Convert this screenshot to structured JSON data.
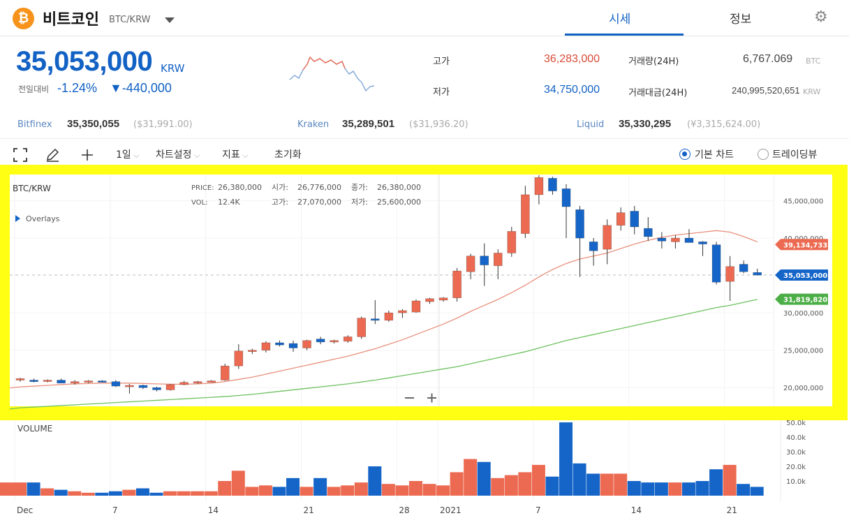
{
  "header": {
    "coin_name": "비트코인",
    "pair": "BTC/KRW",
    "tabs": [
      {
        "label": "시세",
        "active": true
      },
      {
        "label": "정보",
        "active": false
      }
    ]
  },
  "price": {
    "current": "35,053,000",
    "unit": "KRW",
    "change_label": "전일대비",
    "change_pct": "-1.24%",
    "change_abs": "▼-440,000",
    "high_label": "고가",
    "high": "36,283,000",
    "low_label": "저가",
    "low": "34,750,000",
    "volume_label": "거래량(24H)",
    "volume": "6,767.069",
    "volume_unit": "BTC",
    "amount_label": "거래대금(24H)",
    "amount": "240,995,520,651",
    "amount_unit": "KRW"
  },
  "exchanges": [
    {
      "name": "Bitfinex",
      "price": "35,350,055",
      "alt": "($31,991.00)"
    },
    {
      "name": "Kraken",
      "price": "35,289,501",
      "alt": "($31,936.20)"
    },
    {
      "name": "Liquid",
      "price": "35,330,295",
      "alt": "(¥3,315,624.00)"
    }
  ],
  "toolbar": {
    "interval": "1일",
    "chart_settings": "차트설정",
    "indicators": "지표",
    "reset": "초기화",
    "basic_chart": "기본 차트",
    "tradingview": "트레이딩뷰"
  },
  "legend": {
    "symbol": "BTC/KRW",
    "overlays": "Overlays",
    "price_label": "PRICE:",
    "price": "26,380,000",
    "open_label": "시가:",
    "open": "26,776,000",
    "close_label": "종가:",
    "close": "26,380,000",
    "vol_label": "VOL:",
    "vol": "12.4K",
    "high_label": "고가:",
    "high": "27,070,000",
    "low_label": "저가:",
    "low": "25,600,000",
    "volume_title": "VOLUME"
  },
  "colors": {
    "up": "#ec6a51",
    "down": "#1565c8",
    "ma_short": "#e8907c",
    "ma_long": "#6cc15e",
    "accent": "#1261c4",
    "highlight": "#ffff14"
  },
  "chart_data": {
    "type": "candlestick",
    "x_ticks": [
      "Dec",
      "7",
      "14",
      "21",
      "28",
      "2021",
      "7",
      "14",
      "21"
    ],
    "y_ticks": [
      "45,000,000",
      "40,000,000",
      "30,000,000",
      "25,000,000",
      "20,000,000"
    ],
    "y_range": [
      17500000,
      48500000
    ],
    "price_markers": [
      {
        "label": "39,134,733",
        "value": 39134733,
        "color": "#ec6a51"
      },
      {
        "label": "35,053,000",
        "value": 35053000,
        "color": "#1565c8"
      },
      {
        "label": "31,819,820",
        "value": 31819820,
        "color": "#4cae47"
      }
    ],
    "candles": [
      [
        21.0,
        21.3,
        20.8,
        21.2
      ],
      [
        21.0,
        21.2,
        20.7,
        20.8
      ],
      [
        20.9,
        21.1,
        20.7,
        21.0
      ],
      [
        21.0,
        21.2,
        20.6,
        20.6
      ],
      [
        20.6,
        21.0,
        20.4,
        20.8
      ],
      [
        20.8,
        21.0,
        20.6,
        20.9
      ],
      [
        20.9,
        21.0,
        20.7,
        20.8
      ],
      [
        20.8,
        21.0,
        20.1,
        20.2
      ],
      [
        20.2,
        20.5,
        19.2,
        20.3
      ],
      [
        20.3,
        20.4,
        19.8,
        20.0
      ],
      [
        20.0,
        20.1,
        19.5,
        19.7
      ],
      [
        19.7,
        20.5,
        19.6,
        20.4
      ],
      [
        20.4,
        20.9,
        20.3,
        20.7
      ],
      [
        20.6,
        20.9,
        20.5,
        20.8
      ],
      [
        20.8,
        21.0,
        20.7,
        20.9
      ],
      [
        21.0,
        23.2,
        20.9,
        22.9
      ],
      [
        22.9,
        25.8,
        22.5,
        24.9
      ],
      [
        24.9,
        25.2,
        24.5,
        25.0
      ],
      [
        25.0,
        26.2,
        24.7,
        26.0
      ],
      [
        26.0,
        26.3,
        25.5,
        25.7
      ],
      [
        25.9,
        26.3,
        24.8,
        25.3
      ],
      [
        25.3,
        26.4,
        25.0,
        26.3
      ],
      [
        26.5,
        26.8,
        25.8,
        26.1
      ],
      [
        26.1,
        26.4,
        25.9,
        26.3
      ],
      [
        26.2,
        27.0,
        26.0,
        26.8
      ],
      [
        26.8,
        29.5,
        26.5,
        29.3
      ],
      [
        29.2,
        31.7,
        28.5,
        29.0
      ],
      [
        29.0,
        30.3,
        28.8,
        30.0
      ],
      [
        30.0,
        30.5,
        29.3,
        30.3
      ],
      [
        30.1,
        31.8,
        30.0,
        31.6
      ],
      [
        31.5,
        32.0,
        31.2,
        31.9
      ],
      [
        31.7,
        32.1,
        31.5,
        32.0
      ],
      [
        32.0,
        36.0,
        31.5,
        35.6
      ],
      [
        35.5,
        37.9,
        34.5,
        37.6
      ],
      [
        37.6,
        39.3,
        33.6,
        36.4
      ],
      [
        36.3,
        38.5,
        34.5,
        38.0
      ],
      [
        38.0,
        41.5,
        37.5,
        40.9
      ],
      [
        40.6,
        47.0,
        40.0,
        45.8
      ],
      [
        45.8,
        48.4,
        44.5,
        48.1
      ],
      [
        48.0,
        48.2,
        45.8,
        46.3
      ],
      [
        46.6,
        47.2,
        40.0,
        44.2
      ],
      [
        43.8,
        44.3,
        34.8,
        40.0
      ],
      [
        39.5,
        40.0,
        36.3,
        38.3
      ],
      [
        38.5,
        42.5,
        36.5,
        41.7
      ],
      [
        41.7,
        44.1,
        41.0,
        43.4
      ],
      [
        43.6,
        44.3,
        40.5,
        41.5
      ],
      [
        41.3,
        42.8,
        39.6,
        40.2
      ],
      [
        40.0,
        40.8,
        38.6,
        39.6
      ],
      [
        39.5,
        40.4,
        38.6,
        40.0
      ],
      [
        40.0,
        41.2,
        39.5,
        39.4
      ],
      [
        39.5,
        39.6,
        37.6,
        39.2
      ],
      [
        39.1,
        39.5,
        33.8,
        34.1
      ],
      [
        34.2,
        37.6,
        31.6,
        36.2
      ],
      [
        36.5,
        37.0,
        35.3,
        35.5
      ],
      [
        35.4,
        35.9,
        35.0,
        35.05
      ]
    ],
    "ma_short": [
      20.1,
      20.2,
      20.3,
      20.4,
      20.5,
      20.55,
      20.6,
      20.6,
      20.6,
      20.55,
      20.5,
      20.45,
      20.45,
      20.5,
      20.6,
      20.8,
      21.1,
      21.4,
      21.8,
      22.2,
      22.6,
      23.0,
      23.4,
      23.8,
      24.2,
      24.7,
      25.2,
      25.8,
      26.4,
      27.1,
      27.8,
      28.5,
      29.3,
      30.2,
      31.0,
      31.8,
      32.7,
      33.7,
      34.8,
      35.8,
      36.6,
      37.2,
      37.6,
      38.0,
      38.6,
      39.2,
      39.7,
      40.1,
      40.4,
      40.6,
      40.8,
      41.0,
      40.8,
      40.2,
      39.5
    ],
    "ma_long": [
      17.3,
      17.4,
      17.5,
      17.6,
      17.7,
      17.8,
      17.9,
      18.0,
      18.1,
      18.2,
      18.3,
      18.4,
      18.5,
      18.6,
      18.7,
      18.8,
      18.95,
      19.1,
      19.3,
      19.5,
      19.7,
      19.9,
      20.1,
      20.3,
      20.5,
      20.75,
      21.0,
      21.3,
      21.6,
      21.9,
      22.2,
      22.5,
      22.8,
      23.2,
      23.6,
      24.0,
      24.4,
      24.8,
      25.3,
      25.8,
      26.3,
      26.7,
      27.1,
      27.5,
      27.9,
      28.3,
      28.7,
      29.1,
      29.5,
      29.9,
      30.3,
      30.7,
      31.0,
      31.4,
      31.8
    ],
    "volume": {
      "y_ticks": [
        "50.0k",
        "40.0k",
        "30.0k",
        "20.0k",
        "10.0k"
      ],
      "values": [
        9,
        9,
        5,
        4,
        3,
        2,
        2,
        3,
        4,
        5,
        2,
        3,
        3,
        3,
        3,
        10,
        17,
        6,
        7,
        6,
        12,
        6,
        12,
        6,
        7,
        9,
        20,
        8,
        7,
        10,
        8,
        7,
        16,
        25,
        23,
        12,
        14,
        16,
        21,
        13,
        50,
        22,
        15,
        15,
        15,
        10,
        9,
        9,
        9,
        9,
        10,
        18,
        21,
        8,
        6
      ]
    }
  }
}
